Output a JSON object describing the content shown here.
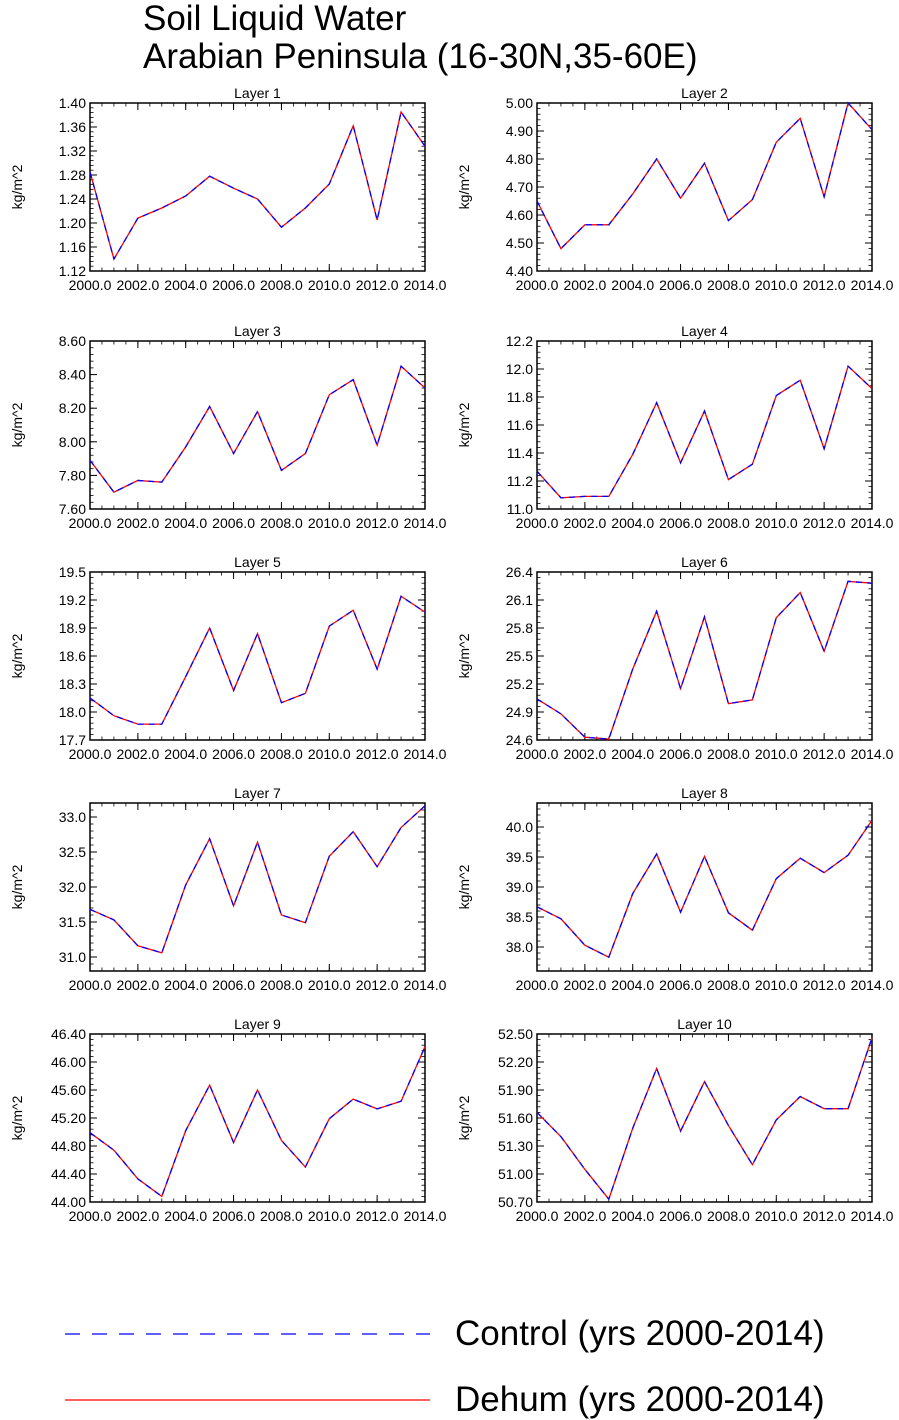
{
  "title": {
    "line1": "Soil Liquid Water",
    "line2": "Arabian Peninsula (16-30N,35-60E)"
  },
  "colors": {
    "control": "#0000ff",
    "dehum": "#ff0000"
  },
  "legend": [
    {
      "label": "Control (yrs 2000-2014)",
      "color": "#0000ff",
      "style": "dashed"
    },
    {
      "label": "Dehum (yrs 2000-2014)",
      "color": "#ff0000",
      "style": "solid"
    }
  ],
  "chart_data": [
    {
      "type": "line",
      "title": "Layer 1",
      "ylabel": "kg/m^2",
      "x": [
        2000,
        2001,
        2002,
        2003,
        2004,
        2005,
        2006,
        2007,
        2008,
        2009,
        2010,
        2011,
        2012,
        2013,
        2014
      ],
      "xlim": [
        2000,
        2014
      ],
      "xticks": [
        2000,
        2002,
        2004,
        2006,
        2008,
        2010,
        2012,
        2014
      ],
      "xtick_labels": [
        "2000.0",
        "2002.0",
        "2004.0",
        "2006.0",
        "2008.0",
        "2010.0",
        "2012.0",
        "2014.0"
      ],
      "ylim": [
        1.12,
        1.4
      ],
      "yticks": [
        1.12,
        1.16,
        1.2,
        1.24,
        1.28,
        1.32,
        1.36,
        1.4
      ],
      "ytick_labels": [
        "1.12",
        "1.16",
        "1.20",
        "1.24",
        "1.28",
        "1.32",
        "1.36",
        "1.40"
      ],
      "series": [
        {
          "name": "Control (yrs 2000-2014)",
          "values": [
            1.285,
            1.14,
            1.208,
            1.225,
            1.245,
            1.278,
            1.258,
            1.24,
            1.193,
            1.225,
            1.265,
            1.362,
            1.205,
            1.385,
            1.328
          ]
        },
        {
          "name": "Dehum (yrs 2000-2014)",
          "values": [
            1.285,
            1.14,
            1.208,
            1.225,
            1.245,
            1.278,
            1.258,
            1.24,
            1.193,
            1.225,
            1.265,
            1.362,
            1.205,
            1.385,
            1.328
          ]
        }
      ]
    },
    {
      "type": "line",
      "title": "Layer 2",
      "ylabel": "kg/m^2",
      "x": [
        2000,
        2001,
        2002,
        2003,
        2004,
        2005,
        2006,
        2007,
        2008,
        2009,
        2010,
        2011,
        2012,
        2013,
        2014
      ],
      "xlim": [
        2000,
        2014
      ],
      "xticks": [
        2000,
        2002,
        2004,
        2006,
        2008,
        2010,
        2012,
        2014
      ],
      "xtick_labels": [
        "2000.0",
        "2002.0",
        "2004.0",
        "2006.0",
        "2008.0",
        "2010.0",
        "2012.0",
        "2014.0"
      ],
      "ylim": [
        4.4,
        5.0
      ],
      "yticks": [
        4.4,
        4.5,
        4.6,
        4.7,
        4.8,
        4.9,
        5.0
      ],
      "ytick_labels": [
        "4.40",
        "4.50",
        "4.60",
        "4.70",
        "4.80",
        "4.90",
        "5.00"
      ],
      "series": [
        {
          "name": "Control (yrs 2000-2014)",
          "values": [
            4.65,
            4.48,
            4.565,
            4.565,
            4.675,
            4.8,
            4.66,
            4.785,
            4.58,
            4.655,
            4.86,
            4.945,
            4.665,
            5.0,
            4.905
          ]
        },
        {
          "name": "Dehum (yrs 2000-2014)",
          "values": [
            4.65,
            4.48,
            4.565,
            4.565,
            4.675,
            4.8,
            4.66,
            4.785,
            4.58,
            4.655,
            4.86,
            4.945,
            4.665,
            5.0,
            4.905
          ]
        }
      ]
    },
    {
      "type": "line",
      "title": "Layer 3",
      "ylabel": "kg/m^2",
      "x": [
        2000,
        2001,
        2002,
        2003,
        2004,
        2005,
        2006,
        2007,
        2008,
        2009,
        2010,
        2011,
        2012,
        2013,
        2014
      ],
      "xlim": [
        2000,
        2014
      ],
      "xticks": [
        2000,
        2002,
        2004,
        2006,
        2008,
        2010,
        2012,
        2014
      ],
      "xtick_labels": [
        "2000.0",
        "2002.0",
        "2004.0",
        "2006.0",
        "2008.0",
        "2010.0",
        "2012.0",
        "2014.0"
      ],
      "ylim": [
        7.6,
        8.6
      ],
      "yticks": [
        7.6,
        7.8,
        8.0,
        8.2,
        8.4,
        8.6
      ],
      "ytick_labels": [
        "7.60",
        "7.80",
        "8.00",
        "8.20",
        "8.40",
        "8.60"
      ],
      "series": [
        {
          "name": "Control (yrs 2000-2014)",
          "values": [
            7.89,
            7.7,
            7.77,
            7.76,
            7.97,
            8.21,
            7.93,
            8.18,
            7.83,
            7.93,
            8.28,
            8.37,
            7.98,
            8.45,
            8.32
          ]
        },
        {
          "name": "Dehum (yrs 2000-2014)",
          "values": [
            7.89,
            7.7,
            7.77,
            7.76,
            7.97,
            8.21,
            7.93,
            8.18,
            7.83,
            7.93,
            8.28,
            8.37,
            7.98,
            8.45,
            8.32
          ]
        }
      ]
    },
    {
      "type": "line",
      "title": "Layer 4",
      "ylabel": "kg/m^2",
      "x": [
        2000,
        2001,
        2002,
        2003,
        2004,
        2005,
        2006,
        2007,
        2008,
        2009,
        2010,
        2011,
        2012,
        2013,
        2014
      ],
      "xlim": [
        2000,
        2014
      ],
      "xticks": [
        2000,
        2002,
        2004,
        2006,
        2008,
        2010,
        2012,
        2014
      ],
      "xtick_labels": [
        "2000.0",
        "2002.0",
        "2004.0",
        "2006.0",
        "2008.0",
        "2010.0",
        "2012.0",
        "2014.0"
      ],
      "ylim": [
        11.0,
        12.2
      ],
      "yticks": [
        11.0,
        11.2,
        11.4,
        11.6,
        11.8,
        12.0,
        12.2
      ],
      "ytick_labels": [
        "11.0",
        "11.2",
        "11.4",
        "11.6",
        "11.8",
        "12.0",
        "12.2"
      ],
      "series": [
        {
          "name": "Control (yrs 2000-2014)",
          "values": [
            11.27,
            11.08,
            11.09,
            11.09,
            11.39,
            11.76,
            11.33,
            11.7,
            11.21,
            11.32,
            11.81,
            11.92,
            11.43,
            12.02,
            11.86
          ]
        },
        {
          "name": "Dehum (yrs 2000-2014)",
          "values": [
            11.27,
            11.08,
            11.09,
            11.09,
            11.39,
            11.76,
            11.33,
            11.7,
            11.21,
            11.32,
            11.81,
            11.92,
            11.43,
            12.02,
            11.86
          ]
        }
      ]
    },
    {
      "type": "line",
      "title": "Layer 5",
      "ylabel": "kg/m^2",
      "x": [
        2000,
        2001,
        2002,
        2003,
        2004,
        2005,
        2006,
        2007,
        2008,
        2009,
        2010,
        2011,
        2012,
        2013,
        2014
      ],
      "xlim": [
        2000,
        2014
      ],
      "xticks": [
        2000,
        2002,
        2004,
        2006,
        2008,
        2010,
        2012,
        2014
      ],
      "xtick_labels": [
        "2000.0",
        "2002.0",
        "2004.0",
        "2006.0",
        "2008.0",
        "2010.0",
        "2012.0",
        "2014.0"
      ],
      "ylim": [
        17.7,
        19.5
      ],
      "yticks": [
        17.7,
        18.0,
        18.3,
        18.6,
        18.9,
        19.2,
        19.5
      ],
      "ytick_labels": [
        "17.7",
        "18.0",
        "18.3",
        "18.6",
        "18.9",
        "19.2",
        "19.5"
      ],
      "series": [
        {
          "name": "Control (yrs 2000-2014)",
          "values": [
            18.15,
            17.96,
            17.87,
            17.87,
            18.38,
            18.9,
            18.23,
            18.84,
            18.1,
            18.2,
            18.92,
            19.09,
            18.46,
            19.24,
            19.07
          ]
        },
        {
          "name": "Dehum (yrs 2000-2014)",
          "values": [
            18.15,
            17.96,
            17.87,
            17.87,
            18.38,
            18.9,
            18.23,
            18.84,
            18.1,
            18.2,
            18.92,
            19.09,
            18.46,
            19.24,
            19.07
          ]
        }
      ]
    },
    {
      "type": "line",
      "title": "Layer 6",
      "ylabel": "kg/m^2",
      "x": [
        2000,
        2001,
        2002,
        2003,
        2004,
        2005,
        2006,
        2007,
        2008,
        2009,
        2010,
        2011,
        2012,
        2013,
        2014
      ],
      "xlim": [
        2000,
        2014
      ],
      "xticks": [
        2000,
        2002,
        2004,
        2006,
        2008,
        2010,
        2012,
        2014
      ],
      "xtick_labels": [
        "2000.0",
        "2002.0",
        "2004.0",
        "2006.0",
        "2008.0",
        "2010.0",
        "2012.0",
        "2014.0"
      ],
      "ylim": [
        24.6,
        26.4
      ],
      "yticks": [
        24.6,
        24.9,
        25.2,
        25.5,
        25.8,
        26.1,
        26.4
      ],
      "ytick_labels": [
        "24.6",
        "24.9",
        "25.2",
        "25.5",
        "25.8",
        "26.1",
        "26.4"
      ],
      "series": [
        {
          "name": "Control (yrs 2000-2014)",
          "values": [
            25.04,
            24.88,
            24.63,
            24.61,
            25.36,
            25.98,
            25.15,
            25.92,
            24.99,
            25.03,
            25.91,
            26.18,
            25.55,
            26.3,
            26.28
          ]
        },
        {
          "name": "Dehum (yrs 2000-2014)",
          "values": [
            25.04,
            24.88,
            24.63,
            24.61,
            25.36,
            25.98,
            25.15,
            25.92,
            24.99,
            25.03,
            25.91,
            26.18,
            25.55,
            26.3,
            26.28
          ]
        }
      ]
    },
    {
      "type": "line",
      "title": "Layer 7",
      "ylabel": "kg/m^2",
      "x": [
        2000,
        2001,
        2002,
        2003,
        2004,
        2005,
        2006,
        2007,
        2008,
        2009,
        2010,
        2011,
        2012,
        2013,
        2014
      ],
      "xlim": [
        2000,
        2014
      ],
      "xticks": [
        2000,
        2002,
        2004,
        2006,
        2008,
        2010,
        2012,
        2014
      ],
      "xtick_labels": [
        "2000.0",
        "2002.0",
        "2004.0",
        "2006.0",
        "2008.0",
        "2010.0",
        "2012.0",
        "2014.0"
      ],
      "ylim": [
        30.8,
        33.2
      ],
      "yticks": [
        31.0,
        31.5,
        32.0,
        32.5,
        33.0
      ],
      "ytick_labels": [
        "31.0",
        "31.5",
        "32.0",
        "32.5",
        "33.0"
      ],
      "series": [
        {
          "name": "Control (yrs 2000-2014)",
          "values": [
            31.68,
            31.53,
            31.16,
            31.06,
            32.03,
            32.69,
            31.73,
            32.64,
            31.6,
            31.49,
            32.44,
            32.79,
            32.29,
            32.85,
            33.16
          ]
        },
        {
          "name": "Dehum (yrs 2000-2014)",
          "values": [
            31.68,
            31.53,
            31.16,
            31.06,
            32.03,
            32.69,
            31.73,
            32.64,
            31.6,
            31.49,
            32.44,
            32.79,
            32.29,
            32.85,
            33.16
          ]
        }
      ]
    },
    {
      "type": "line",
      "title": "Layer 8",
      "ylabel": "kg/m^2",
      "x": [
        2000,
        2001,
        2002,
        2003,
        2004,
        2005,
        2006,
        2007,
        2008,
        2009,
        2010,
        2011,
        2012,
        2013,
        2014
      ],
      "xlim": [
        2000,
        2014
      ],
      "xticks": [
        2000,
        2002,
        2004,
        2006,
        2008,
        2010,
        2012,
        2014
      ],
      "xtick_labels": [
        "2000.0",
        "2002.0",
        "2004.0",
        "2006.0",
        "2008.0",
        "2010.0",
        "2012.0",
        "2014.0"
      ],
      "ylim": [
        37.6,
        40.4
      ],
      "yticks": [
        38.0,
        38.5,
        39.0,
        39.5,
        40.0
      ],
      "ytick_labels": [
        "38.0",
        "38.5",
        "39.0",
        "39.5",
        "40.0"
      ],
      "series": [
        {
          "name": "Control (yrs 2000-2014)",
          "values": [
            38.67,
            38.47,
            38.03,
            37.83,
            38.89,
            39.55,
            38.58,
            39.51,
            38.57,
            38.28,
            39.14,
            39.48,
            39.24,
            39.53,
            40.11
          ]
        },
        {
          "name": "Dehum (yrs 2000-2014)",
          "values": [
            38.67,
            38.47,
            38.03,
            37.83,
            38.89,
            39.55,
            38.58,
            39.51,
            38.57,
            38.28,
            39.14,
            39.48,
            39.24,
            39.53,
            40.11
          ]
        }
      ]
    },
    {
      "type": "line",
      "title": "Layer 9",
      "ylabel": "kg/m^2",
      "x": [
        2000,
        2001,
        2002,
        2003,
        2004,
        2005,
        2006,
        2007,
        2008,
        2009,
        2010,
        2011,
        2012,
        2013,
        2014
      ],
      "xlim": [
        2000,
        2014
      ],
      "xticks": [
        2000,
        2002,
        2004,
        2006,
        2008,
        2010,
        2012,
        2014
      ],
      "xtick_labels": [
        "2000.0",
        "2002.0",
        "2004.0",
        "2006.0",
        "2008.0",
        "2010.0",
        "2012.0",
        "2014.0"
      ],
      "ylim": [
        44.0,
        46.4
      ],
      "yticks": [
        44.0,
        44.4,
        44.8,
        45.2,
        45.6,
        46.0,
        46.4
      ],
      "ytick_labels": [
        "44.00",
        "44.40",
        "44.80",
        "45.20",
        "45.60",
        "46.00",
        "46.40"
      ],
      "series": [
        {
          "name": "Control (yrs 2000-2014)",
          "values": [
            44.99,
            44.74,
            44.33,
            44.08,
            45.02,
            45.67,
            44.85,
            45.6,
            44.88,
            44.5,
            45.19,
            45.47,
            45.33,
            45.44,
            46.22
          ]
        },
        {
          "name": "Dehum (yrs 2000-2014)",
          "values": [
            44.99,
            44.74,
            44.33,
            44.08,
            45.02,
            45.67,
            44.85,
            45.6,
            44.88,
            44.5,
            45.19,
            45.47,
            45.33,
            45.44,
            46.22
          ]
        }
      ]
    },
    {
      "type": "line",
      "title": "Layer 10",
      "ylabel": "kg/m^2",
      "x": [
        2000,
        2001,
        2002,
        2003,
        2004,
        2005,
        2006,
        2007,
        2008,
        2009,
        2010,
        2011,
        2012,
        2013,
        2014
      ],
      "xlim": [
        2000,
        2014
      ],
      "xticks": [
        2000,
        2002,
        2004,
        2006,
        2008,
        2010,
        2012,
        2014
      ],
      "xtick_labels": [
        "2000.0",
        "2002.0",
        "2004.0",
        "2006.0",
        "2008.0",
        "2010.0",
        "2012.0",
        "2014.0"
      ],
      "ylim": [
        50.7,
        52.5
      ],
      "yticks": [
        50.7,
        51.0,
        51.3,
        51.6,
        51.9,
        52.2,
        52.5
      ],
      "ytick_labels": [
        "50.70",
        "51.00",
        "51.30",
        "51.60",
        "51.90",
        "52.20",
        "52.50"
      ],
      "series": [
        {
          "name": "Control (yrs 2000-2014)",
          "values": [
            51.66,
            51.4,
            51.05,
            50.73,
            51.49,
            52.13,
            51.46,
            51.99,
            51.52,
            51.1,
            51.58,
            51.83,
            51.7,
            51.7,
            52.46
          ]
        },
        {
          "name": "Dehum (yrs 2000-2014)",
          "values": [
            51.66,
            51.4,
            51.05,
            50.73,
            51.49,
            52.13,
            51.46,
            51.99,
            51.52,
            51.1,
            51.58,
            51.83,
            51.7,
            51.7,
            52.46
          ]
        }
      ]
    }
  ]
}
